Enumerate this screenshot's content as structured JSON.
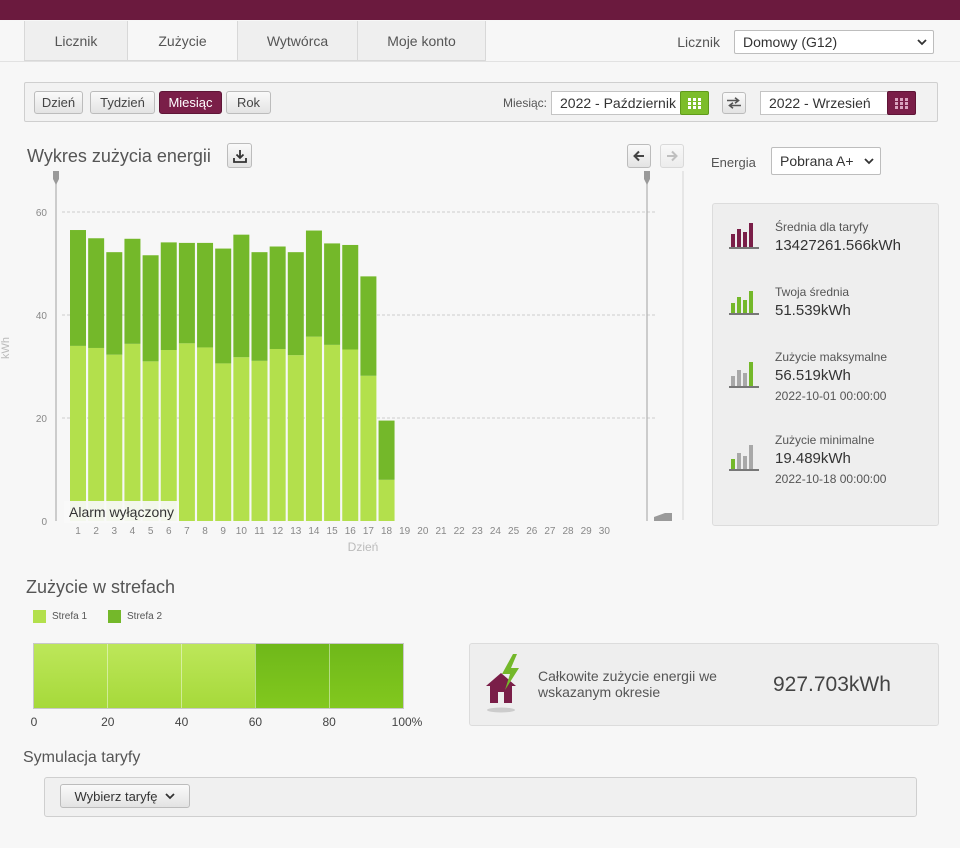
{
  "colors": {
    "brand": "#6b1a3e",
    "accent_purple": "#7a1e48",
    "zone1": "#b3e04c",
    "zone2": "#74b82a",
    "zone2_bar": "#7cc21c"
  },
  "nav": {
    "tabs": [
      {
        "label": "Licznik",
        "active": false
      },
      {
        "label": "Zużycie",
        "active": true
      },
      {
        "label": "Wytwórca",
        "active": false
      },
      {
        "label": "Moje konto",
        "active": false
      }
    ],
    "meter_label": "Licznik",
    "meter_value": "Domowy (G12)"
  },
  "period": {
    "buttons": [
      {
        "label": "Dzień",
        "active": false
      },
      {
        "label": "Tydzień",
        "active": false
      },
      {
        "label": "Miesiąc",
        "active": true
      },
      {
        "label": "Rok",
        "active": false
      }
    ],
    "month_label": "Miesiąc:",
    "current": "2022 - Październik",
    "compare": "2022 - Wrzesień"
  },
  "chart_section": {
    "title": "Wykres zużycia energii",
    "alarm": "Alarm wyłączony",
    "energy_label": "Energia",
    "energy_value": "Pobrana A+"
  },
  "chart_data": {
    "type": "bar",
    "stacked": true,
    "categories": [
      "1",
      "2",
      "3",
      "4",
      "5",
      "6",
      "7",
      "8",
      "9",
      "10",
      "11",
      "12",
      "13",
      "14",
      "15",
      "16",
      "17",
      "18",
      "19",
      "20",
      "21",
      "22",
      "23",
      "24",
      "25",
      "26",
      "27",
      "28",
      "29",
      "30"
    ],
    "series": [
      {
        "name": "Strefa 1",
        "values": [
          34.0,
          33.6,
          32.3,
          34.4,
          31.0,
          33.2,
          34.5,
          33.7,
          30.6,
          31.8,
          31.1,
          33.4,
          32.2,
          35.8,
          34.2,
          33.3,
          28.2,
          8.0,
          0,
          0,
          0,
          0,
          0,
          0,
          0,
          0,
          0,
          0,
          0,
          0
        ]
      },
      {
        "name": "Strefa 2",
        "values": [
          22.5,
          21.3,
          19.9,
          20.4,
          20.6,
          20.9,
          19.5,
          20.3,
          22.3,
          23.8,
          21.1,
          19.9,
          20.0,
          20.6,
          19.7,
          20.3,
          19.3,
          11.5,
          0,
          0,
          0,
          0,
          0,
          0,
          0,
          0,
          0,
          0,
          0,
          0
        ]
      }
    ],
    "title": "Wykres zużycia energii",
    "xlabel": "Dzień",
    "ylabel": "kWh",
    "yticks": [
      0,
      20,
      40,
      60
    ],
    "ylim": [
      0,
      60
    ],
    "grid": true
  },
  "stats": {
    "tariff_avg_label": "Średnia dla taryfy",
    "tariff_avg_value": "13427261.566kWh",
    "your_avg_label": "Twoja średnia",
    "your_avg_value": "51.539kWh",
    "max_label": "Zużycie maksymalne",
    "max_value": "56.519kWh",
    "max_date": "2022-10-01 00:00:00",
    "min_label": "Zużycie minimalne",
    "min_value": "19.489kWh",
    "min_date": "2022-10-18 00:00:00"
  },
  "zones": {
    "title": "Zużycie w strefach",
    "legend": [
      {
        "label": "Strefa 1",
        "color": "#b3e04c"
      },
      {
        "label": "Strefa 2",
        "color": "#74b82a"
      }
    ],
    "share_percent": [
      60,
      40
    ],
    "ticks": [
      "0",
      "20",
      "40",
      "60",
      "80",
      "100%"
    ]
  },
  "total": {
    "label": "Całkowite zużycie energii we wskazanym okresie",
    "value": "927.703kWh"
  },
  "simulation": {
    "title": "Symulacja taryfy",
    "select_label": "Wybierz taryfę"
  }
}
